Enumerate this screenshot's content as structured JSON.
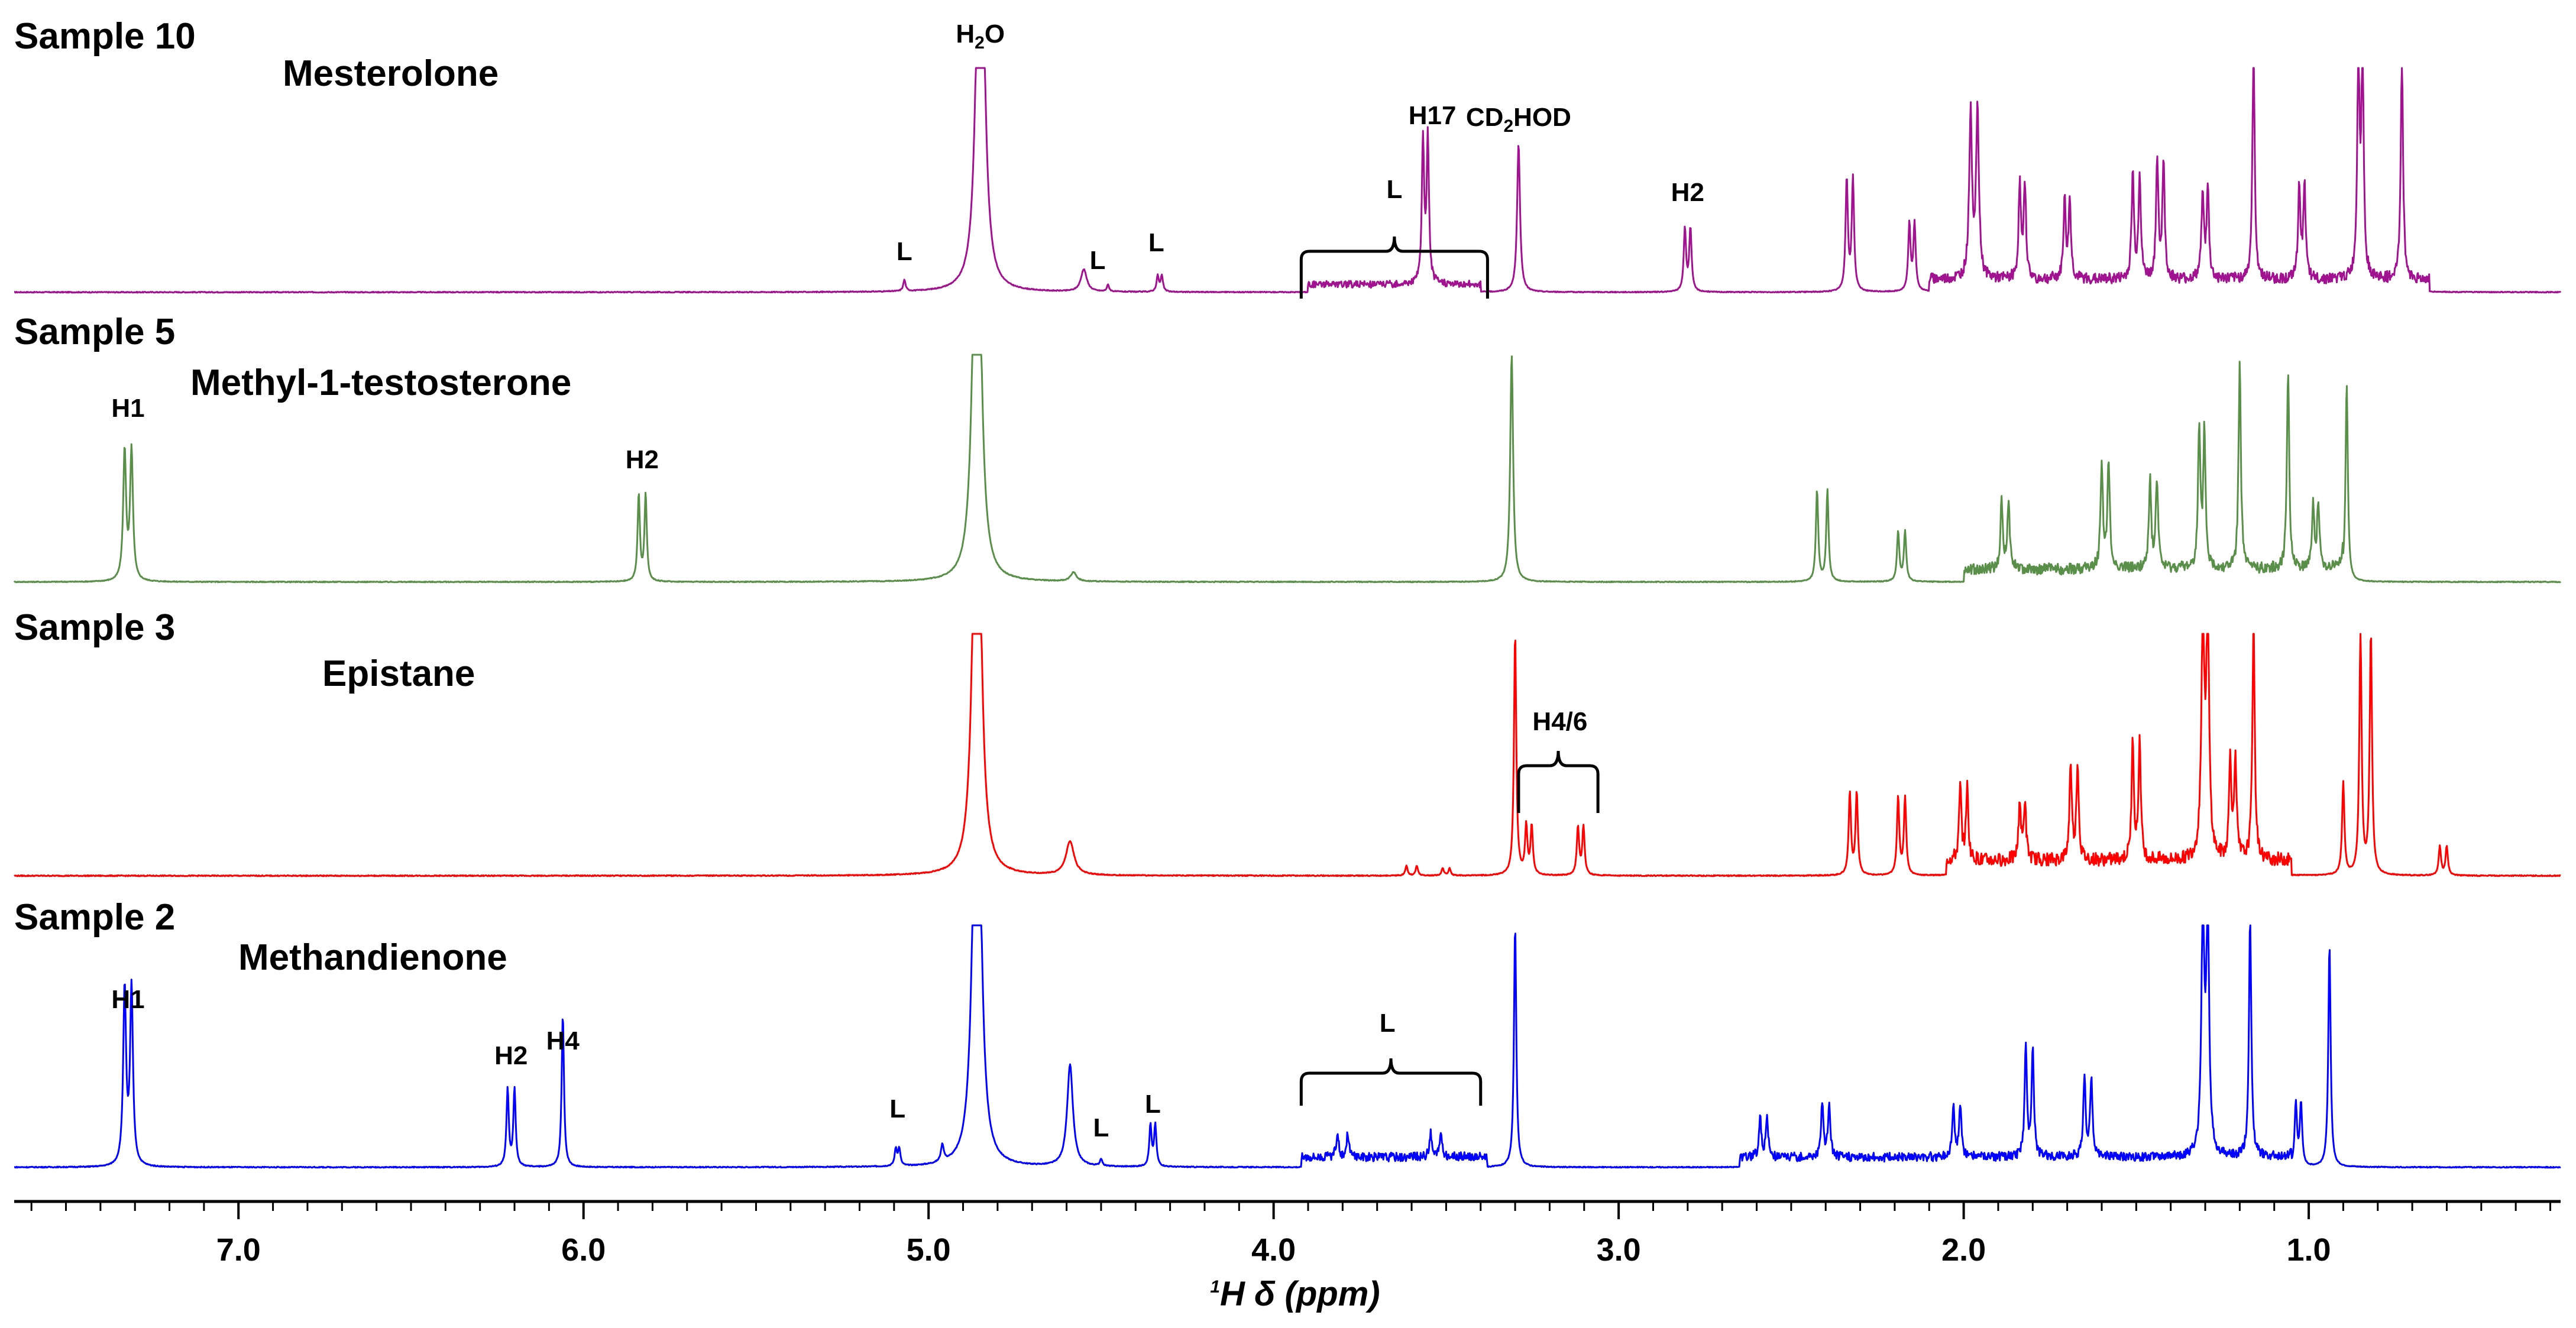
{
  "chart_data": {
    "type": "line",
    "xaxis": {
      "label_prefix": "1",
      "label_main": "H δ (ppm)",
      "xlim": [
        7.65,
        0.27
      ],
      "ticks": [
        {
          "value": 7.0,
          "label": "7.0"
        },
        {
          "value": 6.0,
          "label": "6.0"
        },
        {
          "value": 5.0,
          "label": "5.0"
        },
        {
          "value": 4.0,
          "label": "4.0"
        },
        {
          "value": 3.0,
          "label": "3.0"
        },
        {
          "value": 2.0,
          "label": "2.0"
        },
        {
          "value": 1.0,
          "label": "1.0"
        }
      ],
      "minor_step": 0.1
    },
    "panels": [
      {
        "id": "sample10",
        "title": "Sample 10",
        "compound": "Mesterolone",
        "color": "#a0128f",
        "peaks": [
          {
            "ppm": 4.85,
            "height": 1.0,
            "width": 0.012,
            "doublet": 0.012
          },
          {
            "ppm": 5.07,
            "height": 0.05,
            "width": 0.004
          },
          {
            "ppm": 4.55,
            "height": 0.1,
            "width": 0.01
          },
          {
            "ppm": 4.48,
            "height": 0.03,
            "width": 0.004
          },
          {
            "ppm": 4.33,
            "height": 0.07,
            "width": 0.004,
            "doublet": 0.012
          },
          {
            "ppm": 3.56,
            "height": 0.64,
            "width": 0.004,
            "doublet": 0.014
          },
          {
            "ppm": 3.29,
            "height": 0.66,
            "width": 0.005
          },
          {
            "ppm": 2.8,
            "height": 0.28,
            "width": 0.004,
            "doublet": 0.016
          },
          {
            "ppm": 2.33,
            "height": 0.5,
            "width": 0.004,
            "doublet": 0.018
          },
          {
            "ppm": 2.15,
            "height": 0.3,
            "width": 0.004,
            "doublet": 0.015
          },
          {
            "ppm": 1.97,
            "height": 0.73,
            "width": 0.005,
            "doublet": 0.02
          },
          {
            "ppm": 1.83,
            "height": 0.42,
            "width": 0.004,
            "doublet": 0.015
          },
          {
            "ppm": 1.7,
            "height": 0.35,
            "width": 0.004,
            "doublet": 0.015
          },
          {
            "ppm": 1.5,
            "height": 0.47,
            "width": 0.004,
            "doublet": 0.02
          },
          {
            "ppm": 1.43,
            "height": 0.52,
            "width": 0.004,
            "doublet": 0.018
          },
          {
            "ppm": 1.3,
            "height": 0.4,
            "width": 0.004,
            "doublet": 0.015
          },
          {
            "ppm": 1.16,
            "height": 1.0,
            "width": 0.004
          },
          {
            "ppm": 1.02,
            "height": 0.42,
            "width": 0.004,
            "doublet": 0.015
          },
          {
            "ppm": 0.85,
            "height": 1.0,
            "width": 0.004,
            "doublet": 0.012
          },
          {
            "ppm": 0.73,
            "height": 1.0,
            "width": 0.004
          }
        ],
        "humps": [
          {
            "from": 3.9,
            "to": 3.4,
            "height": 0.05
          },
          {
            "from": 2.1,
            "to": 0.65,
            "height": 0.08
          }
        ],
        "annotations": [
          {
            "text": "H",
            "sub": "2",
            "after": "O",
            "ppm": 4.85
          },
          {
            "text": "L",
            "ppm": 5.07
          },
          {
            "text": "L",
            "ppm": 4.51
          },
          {
            "text": "L",
            "ppm": 4.34
          },
          {
            "text": "L",
            "ppm": 3.65
          },
          {
            "text": "H17",
            "ppm": 3.54
          },
          {
            "text": "CD",
            "sub": "2",
            "after": "HOD",
            "ppm": 3.29
          },
          {
            "text": "H2",
            "ppm": 2.8
          }
        ],
        "bracket": {
          "from": 3.92,
          "to": 3.38
        }
      },
      {
        "id": "sample5",
        "title": "Sample 5",
        "compound": "Methyl-1-testosterone",
        "color": "#5a8f4a",
        "peaks": [
          {
            "ppm": 7.32,
            "height": 0.57,
            "width": 0.005,
            "doublet": 0.02
          },
          {
            "ppm": 5.83,
            "height": 0.38,
            "width": 0.004,
            "doublet": 0.02
          },
          {
            "ppm": 4.86,
            "height": 1.0,
            "width": 0.012,
            "doublet": 0.012
          },
          {
            "ppm": 4.58,
            "height": 0.04,
            "width": 0.01
          },
          {
            "ppm": 3.31,
            "height": 1.0,
            "width": 0.005
          },
          {
            "ppm": 2.41,
            "height": 0.4,
            "width": 0.004,
            "doublet": 0.03
          },
          {
            "ppm": 2.18,
            "height": 0.22,
            "width": 0.004,
            "doublet": 0.02
          },
          {
            "ppm": 1.88,
            "height": 0.3,
            "width": 0.004,
            "doublet": 0.02
          },
          {
            "ppm": 1.59,
            "height": 0.47,
            "width": 0.004,
            "doublet": 0.02
          },
          {
            "ppm": 1.45,
            "height": 0.39,
            "width": 0.004,
            "doublet": 0.02
          },
          {
            "ppm": 1.31,
            "height": 0.6,
            "width": 0.004,
            "doublet": 0.015
          },
          {
            "ppm": 1.2,
            "height": 0.9,
            "width": 0.004
          },
          {
            "ppm": 1.06,
            "height": 0.88,
            "width": 0.004
          },
          {
            "ppm": 0.98,
            "height": 0.28,
            "width": 0.004,
            "doublet": 0.015
          },
          {
            "ppm": 0.89,
            "height": 0.87,
            "width": 0.004
          }
        ],
        "humps": [
          {
            "from": 2.0,
            "to": 0.9,
            "height": 0.08
          }
        ],
        "annotations": [
          {
            "text": "H1",
            "ppm": 7.32
          },
          {
            "text": "H2",
            "ppm": 5.83
          }
        ]
      },
      {
        "id": "sample3",
        "title": "Sample 3",
        "compound": "Epistane",
        "color": "#ff0000",
        "peaks": [
          {
            "ppm": 4.86,
            "height": 1.0,
            "width": 0.012,
            "doublet": 0.012
          },
          {
            "ppm": 4.59,
            "height": 0.14,
            "width": 0.014
          },
          {
            "ppm": 3.6,
            "height": 0.04,
            "width": 0.004,
            "doublet": 0.03
          },
          {
            "ppm": 3.5,
            "height": 0.03,
            "width": 0.004,
            "doublet": 0.02
          },
          {
            "ppm": 3.3,
            "height": 1.0,
            "width": 0.004
          },
          {
            "ppm": 3.26,
            "height": 0.2,
            "width": 0.004,
            "doublet": 0.016
          },
          {
            "ppm": 3.11,
            "height": 0.2,
            "width": 0.004,
            "doublet": 0.016
          },
          {
            "ppm": 2.32,
            "height": 0.34,
            "width": 0.004,
            "doublet": 0.02
          },
          {
            "ppm": 2.18,
            "height": 0.32,
            "width": 0.004,
            "doublet": 0.02
          },
          {
            "ppm": 2.0,
            "height": 0.3,
            "width": 0.004,
            "doublet": 0.02
          },
          {
            "ppm": 1.83,
            "height": 0.24,
            "width": 0.004,
            "doublet": 0.015
          },
          {
            "ppm": 1.68,
            "height": 0.4,
            "width": 0.004,
            "doublet": 0.02
          },
          {
            "ppm": 1.5,
            "height": 0.49,
            "width": 0.004,
            "doublet": 0.02
          },
          {
            "ppm": 1.3,
            "height": 1.0,
            "width": 0.005,
            "doublet": 0.014
          },
          {
            "ppm": 1.22,
            "height": 0.42,
            "width": 0.004,
            "doublet": 0.015
          },
          {
            "ppm": 1.16,
            "height": 1.0,
            "width": 0.004
          },
          {
            "ppm": 0.9,
            "height": 0.38,
            "width": 0.004
          },
          {
            "ppm": 0.85,
            "height": 1.0,
            "width": 0.004
          },
          {
            "ppm": 0.82,
            "height": 1.0,
            "width": 0.004
          },
          {
            "ppm": 0.61,
            "height": 0.12,
            "width": 0.004,
            "doublet": 0.02
          }
        ],
        "humps": [
          {
            "from": 2.05,
            "to": 1.05,
            "height": 0.09
          }
        ],
        "annotations": [
          {
            "text": "H4/6",
            "ppm": 3.17
          }
        ],
        "bracket": {
          "from": 3.29,
          "to": 3.06
        }
      },
      {
        "id": "sample2",
        "title": "Sample 2",
        "compound": "Methandienone",
        "color": "#0000ff",
        "peaks": [
          {
            "ppm": 7.32,
            "height": 0.73,
            "width": 0.005,
            "doublet": 0.02
          },
          {
            "ppm": 6.21,
            "height": 0.32,
            "width": 0.004,
            "doublet": 0.02
          },
          {
            "ppm": 6.06,
            "height": 0.63,
            "width": 0.004
          },
          {
            "ppm": 5.09,
            "height": 0.07,
            "width": 0.004,
            "doublet": 0.01
          },
          {
            "ppm": 4.96,
            "height": 0.07,
            "width": 0.005
          },
          {
            "ppm": 4.86,
            "height": 1.0,
            "width": 0.012,
            "doublet": 0.012
          },
          {
            "ppm": 4.59,
            "height": 0.42,
            "width": 0.01
          },
          {
            "ppm": 4.5,
            "height": 0.03,
            "width": 0.004
          },
          {
            "ppm": 4.35,
            "height": 0.17,
            "width": 0.004,
            "doublet": 0.014
          },
          {
            "ppm": 3.8,
            "height": 0.1,
            "width": 0.004,
            "doublet": 0.03
          },
          {
            "ppm": 3.53,
            "height": 0.1,
            "width": 0.004,
            "doublet": 0.03
          },
          {
            "ppm": 3.3,
            "height": 1.0,
            "width": 0.004
          },
          {
            "ppm": 2.58,
            "height": 0.16,
            "width": 0.004,
            "doublet": 0.02
          },
          {
            "ppm": 2.4,
            "height": 0.22,
            "width": 0.004,
            "doublet": 0.02
          },
          {
            "ppm": 2.02,
            "height": 0.22,
            "width": 0.004,
            "doublet": 0.02
          },
          {
            "ppm": 1.81,
            "height": 0.45,
            "width": 0.004,
            "doublet": 0.02
          },
          {
            "ppm": 1.64,
            "height": 0.33,
            "width": 0.004,
            "doublet": 0.02
          },
          {
            "ppm": 1.3,
            "height": 1.0,
            "width": 0.005,
            "doublet": 0.014
          },
          {
            "ppm": 1.17,
            "height": 1.0,
            "width": 0.004
          },
          {
            "ppm": 1.03,
            "height": 0.26,
            "width": 0.004,
            "doublet": 0.015
          },
          {
            "ppm": 0.94,
            "height": 0.92,
            "width": 0.004
          }
        ],
        "humps": [
          {
            "from": 3.92,
            "to": 3.38,
            "height": 0.06
          },
          {
            "from": 2.65,
            "to": 1.05,
            "height": 0.06
          }
        ],
        "annotations": [
          {
            "text": "H1",
            "ppm": 7.32
          },
          {
            "text": "H2",
            "ppm": 6.21
          },
          {
            "text": "H4",
            "ppm": 6.06
          },
          {
            "text": "L",
            "ppm": 5.09
          },
          {
            "text": "L",
            "ppm": 4.5
          },
          {
            "text": "L",
            "ppm": 4.35
          },
          {
            "text": "L",
            "ppm": 3.67
          }
        ],
        "bracket": {
          "from": 3.92,
          "to": 3.4
        }
      }
    ]
  }
}
